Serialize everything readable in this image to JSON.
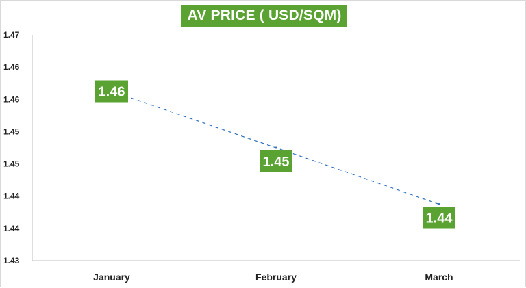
{
  "chart_data": {
    "type": "line",
    "title": "AV PRICE ( USD/SQM)",
    "categories": [
      "January",
      "February",
      "March"
    ],
    "series": [
      {
        "values": [
          1.46,
          1.45,
          1.44
        ],
        "data_labels": [
          "1.46",
          "1.45",
          "1.44"
        ],
        "color": "#2e6fbd",
        "line_style": "dashed"
      }
    ],
    "y_ticks": [
      "1.47",
      "1.46",
      "1.46",
      "1.45",
      "1.45",
      "1.44",
      "1.44",
      "1.43"
    ],
    "ylim": [
      1.43,
      1.47
    ],
    "grid": false,
    "label_color": "#5aa332",
    "xlabel": "",
    "ylabel": ""
  }
}
